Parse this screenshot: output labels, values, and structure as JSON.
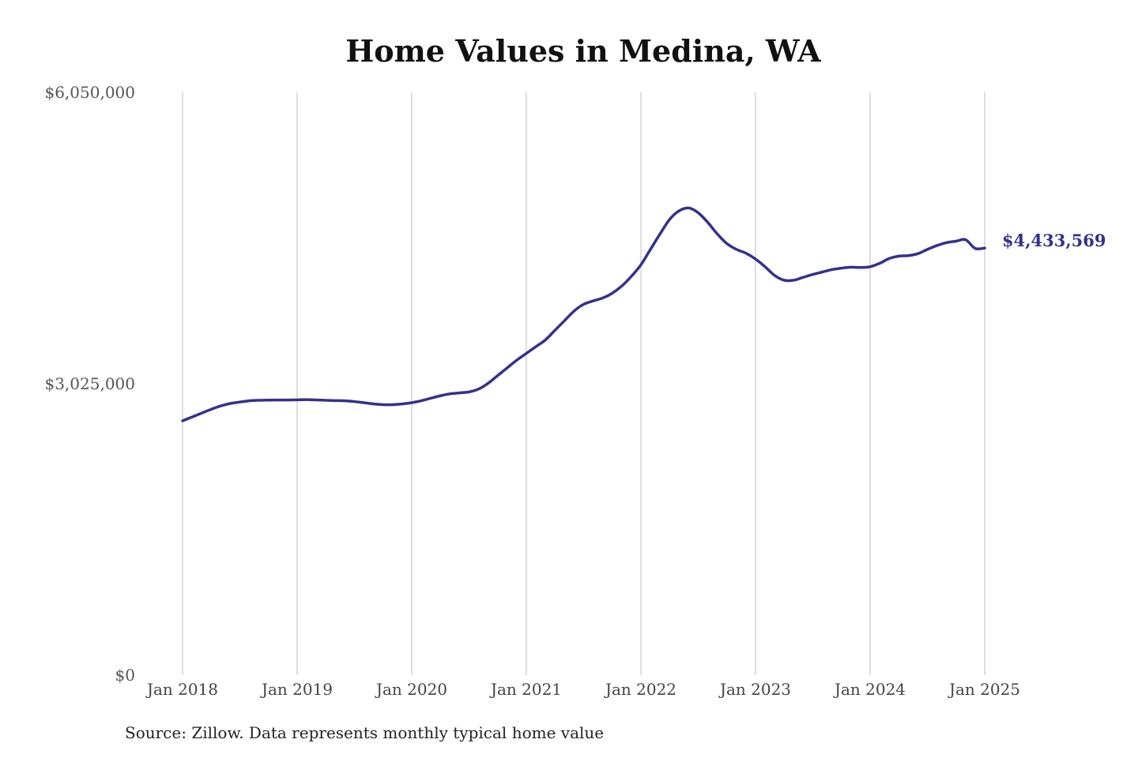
{
  "colors": {
    "line": "#35318a",
    "grid": "#bcbcbc",
    "title": "#111111",
    "tick_text": "#555555"
  },
  "chart_data": {
    "type": "line",
    "title": "Home Values in Medina, WA",
    "xlabel": "",
    "ylabel": "",
    "ylim": [
      0,
      6050000
    ],
    "y_ticks": [
      {
        "value": 0,
        "label": "$0"
      },
      {
        "value": 3025000,
        "label": "$3,025,000"
      },
      {
        "value": 6050000,
        "label": "$6,050,000"
      }
    ],
    "x_ticks": [
      {
        "value": "2018-01",
        "label": "Jan 2018"
      },
      {
        "value": "2019-01",
        "label": "Jan 2019"
      },
      {
        "value": "2020-01",
        "label": "Jan 2020"
      },
      {
        "value": "2021-01",
        "label": "Jan 2021"
      },
      {
        "value": "2022-01",
        "label": "Jan 2022"
      },
      {
        "value": "2023-01",
        "label": "Jan 2023"
      },
      {
        "value": "2024-01",
        "label": "Jan 2024"
      },
      {
        "value": "2025-01",
        "label": "Jan 2025"
      }
    ],
    "grid": "vertical",
    "end_label": "$4,433,569",
    "series": [
      {
        "x": [
          "2018-01",
          "2018-02",
          "2018-03",
          "2018-04",
          "2018-05",
          "2018-06",
          "2018-07",
          "2018-08",
          "2018-09",
          "2018-10",
          "2018-11",
          "2018-12",
          "2019-01",
          "2019-02",
          "2019-03",
          "2019-04",
          "2019-05",
          "2019-06",
          "2019-07",
          "2019-08",
          "2019-09",
          "2019-10",
          "2019-11",
          "2019-12",
          "2020-01",
          "2020-02",
          "2020-03",
          "2020-04",
          "2020-05",
          "2020-06",
          "2020-07",
          "2020-08",
          "2020-09",
          "2020-10",
          "2020-11",
          "2020-12",
          "2021-01",
          "2021-02",
          "2021-03",
          "2021-04",
          "2021-05",
          "2021-06",
          "2021-07",
          "2021-08",
          "2021-09",
          "2021-10",
          "2021-11",
          "2021-12",
          "2022-01",
          "2022-02",
          "2022-03",
          "2022-04",
          "2022-05",
          "2022-06",
          "2022-07",
          "2022-08",
          "2022-09",
          "2022-10",
          "2022-11",
          "2022-12",
          "2023-01",
          "2023-02",
          "2023-03",
          "2023-04",
          "2023-05",
          "2023-06",
          "2023-07",
          "2023-08",
          "2023-09",
          "2023-10",
          "2023-11",
          "2023-12",
          "2024-01",
          "2024-02",
          "2024-03",
          "2024-04",
          "2024-05",
          "2024-06",
          "2024-07",
          "2024-08",
          "2024-09",
          "2024-10",
          "2024-11",
          "2024-12",
          "2025-01"
        ],
        "values": [
          2640000,
          2680000,
          2720000,
          2760000,
          2795000,
          2820000,
          2835000,
          2848000,
          2853000,
          2855000,
          2856000,
          2856000,
          2858000,
          2860000,
          2857000,
          2853000,
          2850000,
          2848000,
          2840000,
          2828000,
          2815000,
          2808000,
          2808000,
          2815000,
          2828000,
          2848000,
          2875000,
          2900000,
          2920000,
          2930000,
          2940000,
          2970000,
          3030000,
          3110000,
          3190000,
          3270000,
          3340000,
          3410000,
          3480000,
          3580000,
          3680000,
          3780000,
          3850000,
          3885000,
          3915000,
          3965000,
          4040000,
          4140000,
          4260000,
          4420000,
          4580000,
          4730000,
          4820000,
          4850000,
          4800000,
          4700000,
          4580000,
          4480000,
          4420000,
          4380000,
          4320000,
          4240000,
          4150000,
          4100000,
          4100000,
          4130000,
          4160000,
          4185000,
          4210000,
          4225000,
          4235000,
          4232000,
          4240000,
          4275000,
          4325000,
          4350000,
          4355000,
          4375000,
          4420000,
          4460000,
          4490000,
          4505000,
          4520000,
          4430000,
          4433569
        ]
      }
    ]
  },
  "footer": {
    "source": "Source: Zillow. Data represents monthly typical home value"
  }
}
